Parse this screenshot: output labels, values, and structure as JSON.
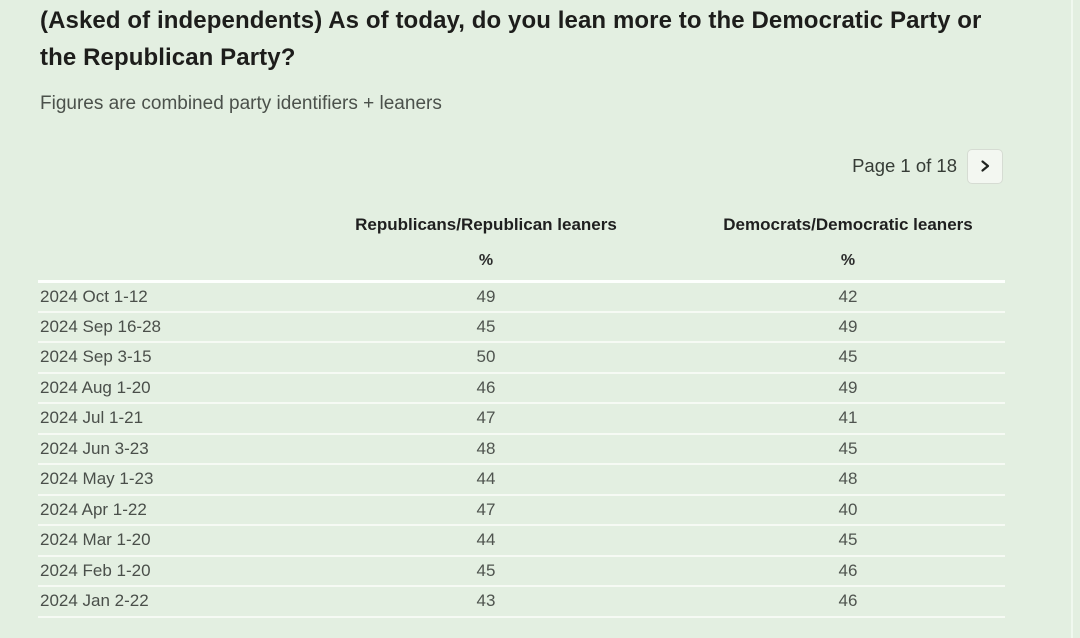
{
  "header": {
    "title": "(Asked of independents) As of today, do you lean more to the Democratic Party or the Republican Party?",
    "subtitle": "Figures are combined party identifiers + leaners"
  },
  "pagination": {
    "label": "Page 1 of 18",
    "next_button_icon": "chevron-right-icon"
  },
  "table": {
    "columns": [
      "Republicans/Republican leaners",
      "Democrats/Democratic leaners"
    ],
    "units": [
      "%",
      "%"
    ],
    "rows": [
      {
        "date": "2024 Oct 1-12",
        "republicans": "49",
        "democrats": "42"
      },
      {
        "date": "2024 Sep 16-28",
        "republicans": "45",
        "democrats": "49"
      },
      {
        "date": "2024 Sep 3-15",
        "republicans": "50",
        "democrats": "45"
      },
      {
        "date": "2024 Aug 1-20",
        "republicans": "46",
        "democrats": "49"
      },
      {
        "date": "2024 Jul 1-21",
        "republicans": "47",
        "democrats": "41"
      },
      {
        "date": "2024 Jun 3-23",
        "republicans": "48",
        "democrats": "45"
      },
      {
        "date": "2024 May 1-23",
        "republicans": "44",
        "democrats": "48"
      },
      {
        "date": "2024 Apr 1-22",
        "republicans": "47",
        "democrats": "40"
      },
      {
        "date": "2024 Mar 1-20",
        "republicans": "44",
        "democrats": "45"
      },
      {
        "date": "2024 Feb 1-20",
        "republicans": "45",
        "democrats": "46"
      },
      {
        "date": "2024 Jan 2-22",
        "republicans": "43",
        "democrats": "46"
      }
    ]
  },
  "chart_data": {
    "type": "table",
    "title": "(Asked of independents) As of today, do you lean more to the Democratic Party or the Republican Party?",
    "subtitle": "Figures are combined party identifiers + leaners",
    "categories": [
      "2024 Oct 1-12",
      "2024 Sep 16-28",
      "2024 Sep 3-15",
      "2024 Aug 1-20",
      "2024 Jul 1-21",
      "2024 Jun 3-23",
      "2024 May 1-23",
      "2024 Apr 1-22",
      "2024 Mar 1-20",
      "2024 Feb 1-20",
      "2024 Jan 2-22"
    ],
    "series": [
      {
        "name": "Republicans/Republican leaners",
        "unit": "%",
        "values": [
          49,
          45,
          50,
          46,
          47,
          48,
          44,
          47,
          44,
          45,
          43
        ]
      },
      {
        "name": "Democrats/Democratic leaners",
        "unit": "%",
        "values": [
          42,
          49,
          45,
          49,
          41,
          45,
          48,
          40,
          45,
          46,
          46
        ]
      }
    ],
    "pagination": "Page 1 of 18"
  },
  "colors": {
    "background": "#e3efe1",
    "row_divider": "#f6faf4",
    "header_divider": "#fdfffd",
    "title_text": "#1d1d1b",
    "subtitle_text": "#4b514b",
    "cell_text": "#4f544f",
    "button_background": "#f3f7f1",
    "button_border": "#d6dcd3"
  }
}
